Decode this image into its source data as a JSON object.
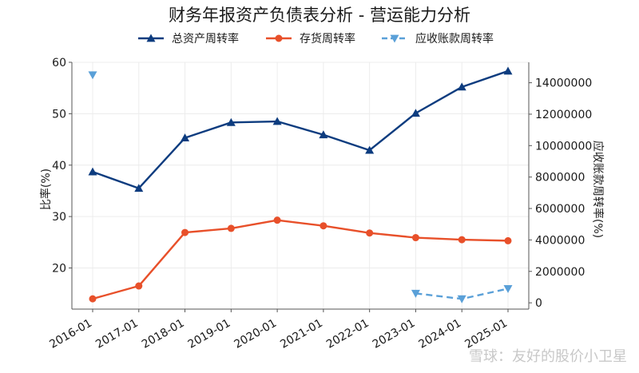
{
  "chart_data": {
    "type": "line",
    "title": "财务年报资产负债表分析 - 营运能力分析",
    "x": [
      "2016-01",
      "2017-01",
      "2018-01",
      "2019-01",
      "2020-01",
      "2021-01",
      "2022-01",
      "2023-01",
      "2024-01",
      "2025-01"
    ],
    "ylabel": "比率(%)",
    "y2label": "应收账款周转率(%)",
    "ylim": [
      12,
      60
    ],
    "y2lim": [
      -400000,
      15300000
    ],
    "yticks": [
      20,
      30,
      40,
      50,
      60
    ],
    "y2ticks": [
      0,
      2000000,
      4000000,
      6000000,
      8000000,
      10000000,
      12000000,
      14000000
    ],
    "grid": true,
    "legend_position": "top-center",
    "series": [
      {
        "name": "总资产周转率",
        "axis": "left",
        "color": "#0d3c7f",
        "marker": "triangle-up",
        "dash": "solid",
        "values": [
          38.7,
          35.5,
          45.3,
          48.3,
          48.5,
          45.9,
          42.9,
          50.1,
          55.2,
          58.3
        ]
      },
      {
        "name": "存货周转率",
        "axis": "left",
        "color": "#e8502a",
        "marker": "circle",
        "dash": "solid",
        "values": [
          14.0,
          16.5,
          26.9,
          27.7,
          29.3,
          28.2,
          26.8,
          25.9,
          25.5,
          25.3
        ]
      },
      {
        "name": "应收账款周转率",
        "axis": "right",
        "color": "#5aa0d8",
        "marker": "triangle-down",
        "dash": "dashed",
        "values": [
          14500000,
          null,
          null,
          null,
          null,
          null,
          null,
          600000,
          250000,
          900000
        ]
      }
    ]
  },
  "watermark": "雪球：友好的股价小卫星"
}
